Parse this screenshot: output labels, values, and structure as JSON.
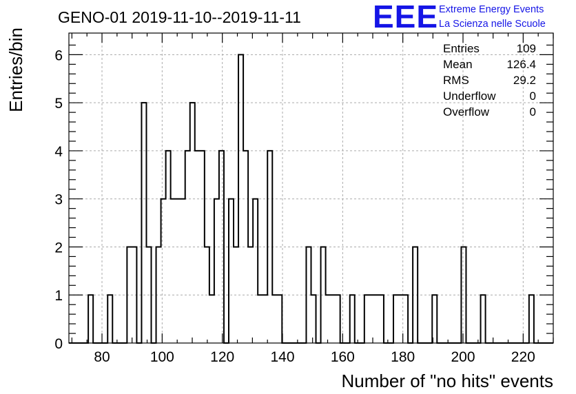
{
  "title": "GENO-01 2019-11-10--2019-11-11",
  "logo": {
    "mark": "EEE",
    "line1": "Extreme Energy Events",
    "line2": "La Scienza nelle Scuole",
    "color": "#1515e6"
  },
  "stats": [
    {
      "label": "Entries",
      "value": "109"
    },
    {
      "label": "Mean",
      "value": "126.4"
    },
    {
      "label": "RMS",
      "value": "29.2"
    },
    {
      "label": "Underflow",
      "value": "0"
    },
    {
      "label": "Overflow",
      "value": "0"
    }
  ],
  "chart_data": {
    "type": "bar",
    "style": "step-histogram",
    "xlabel": "Number of \"no hits\" events",
    "ylabel": "Entries/bin",
    "xlim": [
      69,
      230
    ],
    "ylim": [
      0,
      6.45
    ],
    "bin_width": 1.61,
    "grid": true,
    "x_ticks": [
      80,
      100,
      120,
      140,
      160,
      180,
      200,
      220
    ],
    "y_ticks": [
      0,
      1,
      2,
      3,
      4,
      5,
      6
    ],
    "bin_low_edges": [
      69.0,
      70.61,
      72.22,
      73.83,
      75.44,
      77.05,
      78.66,
      80.27,
      81.88,
      83.49,
      85.1,
      86.71,
      88.32,
      89.93,
      91.54,
      93.15,
      94.76,
      96.37,
      97.98,
      99.59,
      101.2,
      102.81,
      104.42,
      106.03,
      107.64,
      109.25,
      110.86,
      112.47,
      114.08,
      115.69,
      117.3,
      118.91,
      120.52,
      122.13,
      123.74,
      125.35,
      126.96,
      128.57,
      130.18,
      131.79,
      133.4,
      135.01,
      136.62,
      138.23,
      139.84,
      141.45,
      143.06,
      144.67,
      146.28,
      147.89,
      149.5,
      151.11,
      152.72,
      154.33,
      155.94,
      157.55,
      159.16,
      160.77,
      162.38,
      163.99,
      165.6,
      167.21,
      168.82,
      170.43,
      172.04,
      173.65,
      175.26,
      176.87,
      178.48,
      180.09,
      181.7,
      183.31,
      184.92,
      186.53,
      188.14,
      189.75,
      191.36,
      192.97,
      194.58,
      196.19,
      197.8,
      199.41,
      201.02,
      202.63,
      204.24,
      205.85,
      207.46,
      209.07,
      210.68,
      212.29,
      213.9,
      215.51,
      217.12,
      218.73,
      220.34,
      221.95,
      223.56,
      225.17,
      226.78,
      228.39
    ],
    "values": [
      0,
      0,
      0,
      0,
      1,
      0,
      0,
      0,
      1,
      0,
      0,
      0,
      2,
      2,
      0,
      5,
      2,
      0,
      2,
      3,
      4,
      3,
      3,
      3,
      4,
      5,
      4,
      4,
      2,
      1,
      3,
      4,
      0,
      3,
      2,
      6,
      4,
      2,
      3,
      1,
      1,
      4,
      1,
      1,
      0,
      0,
      0,
      0,
      0,
      2,
      1,
      0,
      2,
      1,
      1,
      1,
      0,
      0,
      1,
      0,
      0,
      1,
      1,
      1,
      1,
      0,
      0,
      1,
      1,
      1,
      0,
      2,
      0,
      0,
      0,
      1,
      0,
      0,
      0,
      0,
      0,
      2,
      0,
      0,
      0,
      1,
      0,
      0,
      0,
      0,
      0,
      0,
      0,
      0,
      0,
      1,
      0,
      0,
      0,
      0
    ]
  }
}
